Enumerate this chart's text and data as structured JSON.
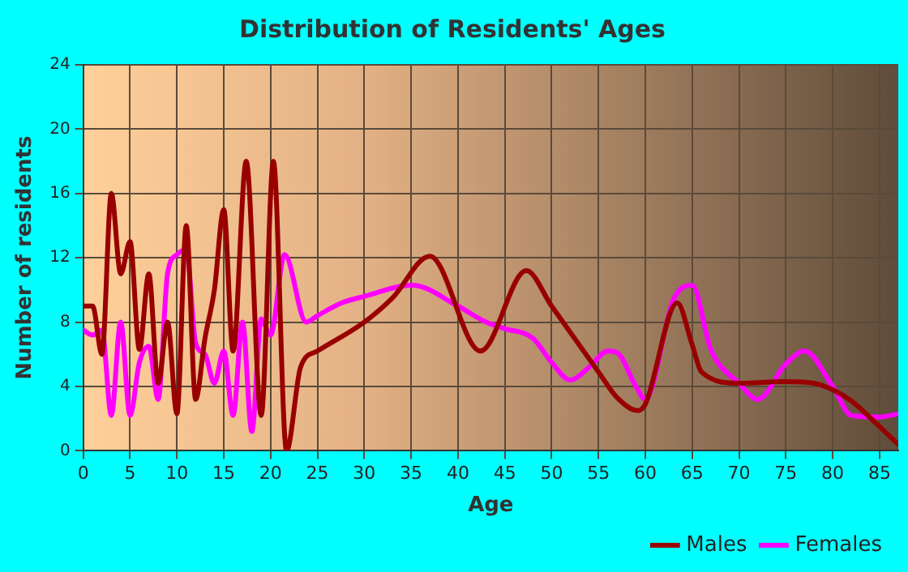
{
  "chart_data": {
    "type": "line",
    "title": "Distribution of Residents' Ages",
    "xlabel": "Age",
    "ylabel": "Number of residents",
    "xlim": [
      0,
      87
    ],
    "xticks": [
      0,
      5,
      10,
      15,
      20,
      25,
      30,
      35,
      40,
      45,
      50,
      55,
      60,
      65,
      70,
      75,
      80,
      85
    ],
    "ylim": [
      0,
      24
    ],
    "yticks": [
      0,
      4,
      8,
      12,
      16,
      20,
      24
    ],
    "grid": true,
    "legend": "bottom right",
    "marker": "none",
    "line_style": "solid",
    "series": [
      {
        "name": "Males",
        "color": "#990000",
        "x": [
          0,
          1,
          2,
          3,
          4,
          5,
          6,
          7,
          8,
          9,
          10,
          11,
          12,
          13,
          14,
          15,
          16,
          17.4,
          19,
          20.3,
          21.7,
          23.2,
          25,
          30,
          33,
          37,
          42.4,
          47.3,
          50,
          55,
          57,
          59.2,
          60,
          63.4,
          65,
          66,
          70,
          75,
          78,
          80,
          82,
          85,
          87
        ],
        "values": [
          9,
          9,
          6,
          16,
          11,
          13,
          6.3,
          11,
          4.2,
          8,
          2.3,
          14,
          3.2,
          7,
          10,
          15,
          6.2,
          18,
          2.2,
          18,
          0,
          5.2,
          6.2,
          8,
          9.5,
          12.1,
          6.2,
          11.2,
          9,
          4.9,
          3.3,
          2.5,
          2.9,
          9.2,
          6.6,
          4.9,
          4.2,
          4.3,
          4.2,
          3.8,
          3.1,
          1.5,
          0.4
        ]
      },
      {
        "name": "Females",
        "color": "#ff00ff",
        "x": [
          0,
          1,
          2,
          3,
          4,
          5,
          6,
          7,
          8,
          9,
          10,
          11,
          12,
          13,
          14,
          15,
          16,
          17,
          18,
          19,
          20,
          21.5,
          23.8,
          25,
          27.6,
          30,
          35.1,
          40,
          43,
          45,
          48,
          50,
          52,
          54,
          56,
          57,
          59,
          60,
          63,
          65,
          67,
          70,
          72,
          75,
          77,
          80,
          82,
          85,
          87
        ],
        "values": [
          7.5,
          7.2,
          7.5,
          2.2,
          8,
          2.2,
          5.5,
          6.5,
          3.2,
          11,
          12.2,
          12.5,
          6.7,
          6,
          4.2,
          6.2,
          2.2,
          8,
          1.2,
          8.2,
          7.2,
          12.2,
          8,
          8.4,
          9.2,
          9.6,
          10.3,
          9,
          8,
          7.6,
          7,
          5.5,
          4.4,
          5.2,
          6.2,
          6.1,
          4,
          3.2,
          9.4,
          10.3,
          6.3,
          4.2,
          3.2,
          5.4,
          6.2,
          4,
          2.2,
          2.1,
          2.3
        ]
      }
    ]
  }
}
